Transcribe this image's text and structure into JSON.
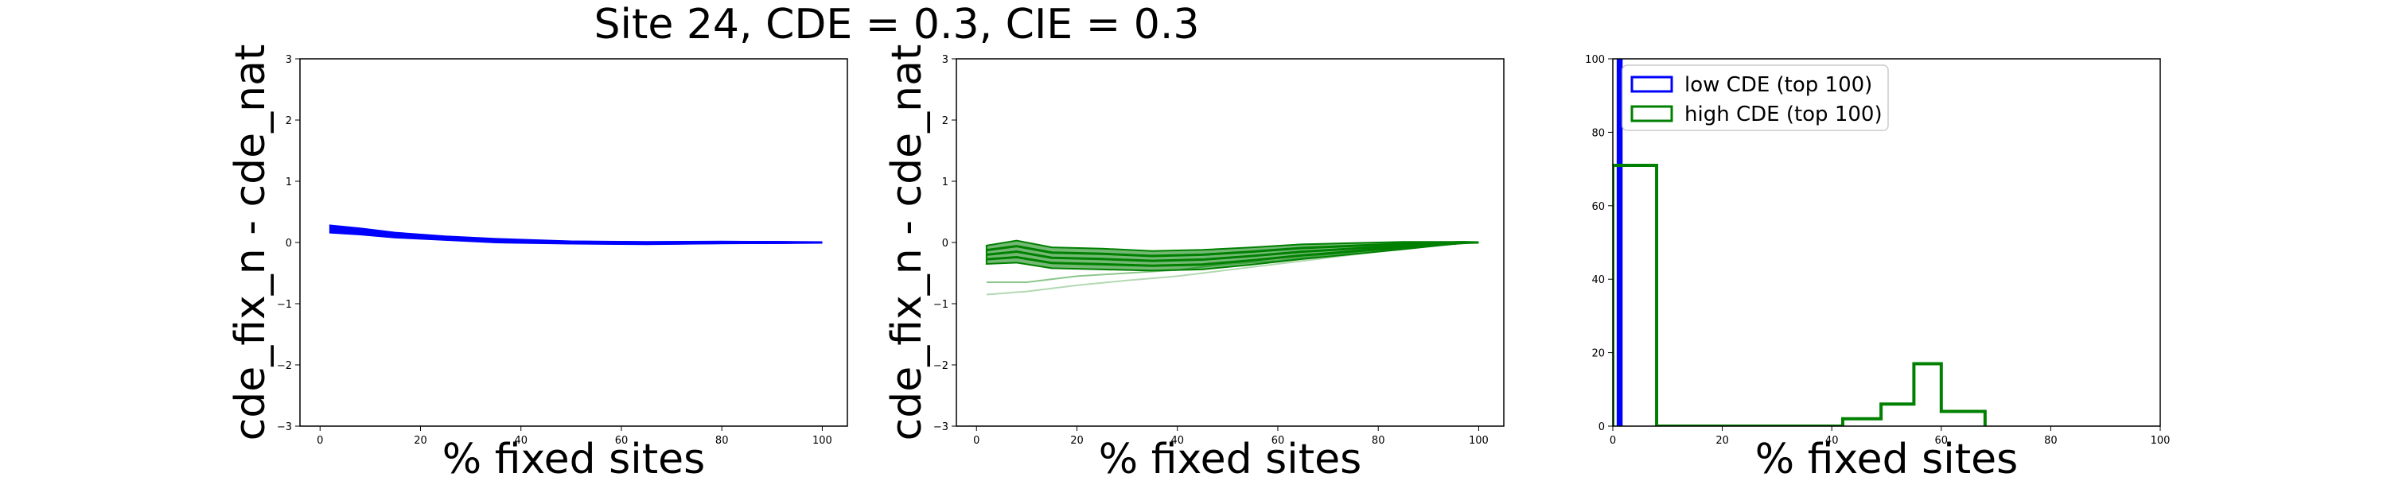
{
  "figure": {
    "title": "Site 24, CDE = 0.3, CIE = 0.3"
  },
  "colors": {
    "low": "#0000ff",
    "high": "#008000"
  },
  "chart_data": [
    {
      "type": "line",
      "xlabel": "% fixed sites",
      "ylabel": "cde_fix_n - cde_nat",
      "xlim": [
        -4,
        105
      ],
      "ylim": [
        -3,
        3
      ],
      "xticks": [
        "0",
        "20",
        "40",
        "60",
        "80",
        "100"
      ],
      "yticks": [
        "−3",
        "−2",
        "−1",
        "0",
        "1",
        "2",
        "3"
      ],
      "color": "low",
      "x": [
        2,
        8,
        15,
        25,
        35,
        50,
        65,
        80,
        92,
        100
      ],
      "series_center": [
        0.22,
        0.18,
        0.12,
        0.07,
        0.03,
        0.0,
        -0.01,
        0.0,
        0.0,
        0.0
      ],
      "band": [
        0.06,
        0.05,
        0.04,
        0.03,
        0.03,
        0.02,
        0.02,
        0.015,
        0.01,
        0.0
      ],
      "outlier_series": []
    },
    {
      "type": "line",
      "xlabel": "% fixed sites",
      "ylabel": "cde_fix_n - cde_nat",
      "xlim": [
        -4,
        105
      ],
      "ylim": [
        -3,
        3
      ],
      "xticks": [
        "0",
        "20",
        "40",
        "60",
        "80",
        "100"
      ],
      "yticks": [
        "−3",
        "−2",
        "−1",
        "0",
        "1",
        "2",
        "3"
      ],
      "color": "high",
      "x": [
        2,
        8,
        15,
        25,
        35,
        45,
        55,
        65,
        75,
        85,
        92,
        97,
        100
      ],
      "series_center": [
        -0.2,
        -0.15,
        -0.25,
        -0.27,
        -0.3,
        -0.28,
        -0.22,
        -0.15,
        -0.1,
        -0.05,
        -0.02,
        0.0,
        0.0
      ],
      "band": [
        0.15,
        0.18,
        0.17,
        0.17,
        0.16,
        0.16,
        0.14,
        0.12,
        0.09,
        0.06,
        0.03,
        0.01,
        0.0
      ],
      "outlier_series": [
        {
          "x": [
            2,
            10,
            20,
            30,
            40,
            50,
            60,
            70,
            80,
            90,
            100
          ],
          "y": [
            -0.65,
            -0.65,
            -0.55,
            -0.5,
            -0.45,
            -0.35,
            -0.3,
            -0.2,
            -0.12,
            -0.05,
            0.0
          ]
        },
        {
          "x": [
            2,
            10,
            20,
            30,
            40,
            50,
            60,
            70,
            80,
            90,
            100
          ],
          "y": [
            -0.85,
            -0.8,
            -0.7,
            -0.62,
            -0.55,
            -0.45,
            -0.35,
            -0.25,
            -0.15,
            -0.05,
            0.0
          ]
        }
      ]
    },
    {
      "type": "histogram",
      "xlabel": "% fixed sites",
      "ylabel": "",
      "xlim": [
        0,
        100
      ],
      "ylim": [
        0,
        100
      ],
      "xticks": [
        "0",
        "20",
        "40",
        "60",
        "80",
        "100"
      ],
      "yticks": [
        "0",
        "20",
        "40",
        "60",
        "80",
        "100"
      ],
      "legend_position": "top-left",
      "series": [
        {
          "name": "low CDE (top 100)",
          "color": "low",
          "bins": [
            [
              1,
              1.5,
              100
            ]
          ]
        },
        {
          "name": "high CDE (top 100)",
          "color": "high",
          "bins": [
            [
              0,
              8,
              71
            ],
            [
              8,
              14,
              0
            ],
            [
              14,
              42,
              0
            ],
            [
              42,
              49,
              2
            ],
            [
              49,
              55,
              6
            ],
            [
              55,
              60,
              17
            ],
            [
              60,
              68,
              4
            ]
          ]
        }
      ]
    }
  ]
}
